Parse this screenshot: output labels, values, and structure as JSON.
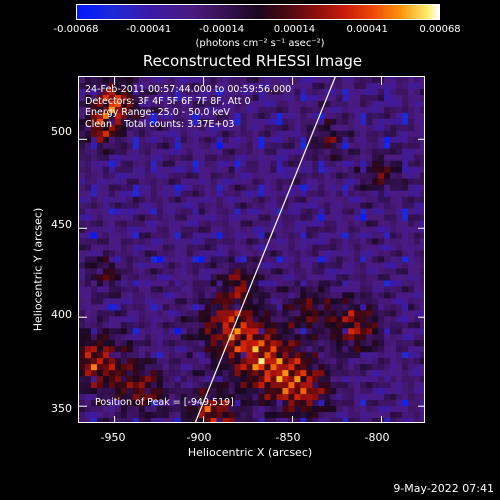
{
  "chart_data": {
    "type": "heatmap",
    "title": "Reconstructed RHESSI Image",
    "xlabel": "Heliocentric X (arcsec)",
    "ylabel": "Heliocentric Y (arcsec)",
    "xlim": [
      -970,
      -775
    ],
    "ylim": [
      340,
      535
    ],
    "x_ticks": [
      "-950",
      "-900",
      "-850",
      "-800"
    ],
    "y_ticks": [
      "350",
      "400",
      "450",
      "500"
    ],
    "colorbar": {
      "ticks": [
        "-0.00068",
        "-0.00041",
        "-0.00014",
        "0.00014",
        "0.00041",
        "0.00068"
      ],
      "range": [
        -0.00068,
        0.00068
      ],
      "unit_label": "(photons cm⁻² s⁻¹ asec⁻²)"
    },
    "info_lines": [
      "24-Feb-2011 00:57:44.000 to 00:59:56.000",
      "Detectors: 3F 4F 5F 6F 7F 8F, Att 0",
      "Energy Range: 25.0 - 50.0 keV",
      "Clean    Total counts: 3.37E+03"
    ],
    "peak_label": "Position of Peak = [-949,519]",
    "peak_position": [
      -949,
      519
    ],
    "limb_line": [
      [
        -905,
        340
      ],
      [
        -826,
        535
      ]
    ]
  },
  "footer_date": "9-May-2022 07:41"
}
